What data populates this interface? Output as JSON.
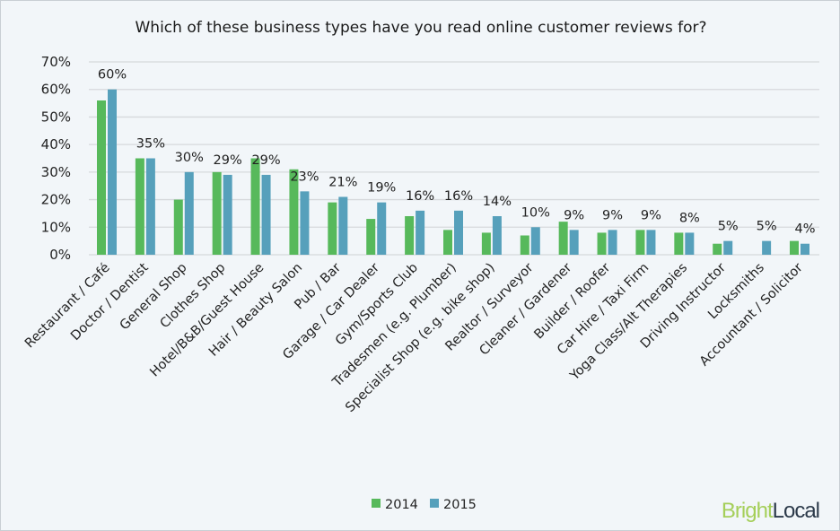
{
  "chart_data": {
    "type": "bar",
    "title": "Which of these business types have you read online customer reviews for?",
    "categories": [
      "Restaurant / Café",
      "Doctor / Dentist",
      "General Shop",
      "Clothes Shop",
      "Hotel/B&B/Guest House",
      "Hair / Beauty Salon",
      "Pub / Bar",
      "Garage / Car Dealer",
      "Gym/Sports Club",
      "Tradesmen (e.g. Plumber)",
      "Specialist Shop (e.g. bike shop)",
      "Realtor / Surveyor",
      "Cleaner / Gardener",
      "Builder / Roofer",
      "Car Hire / Taxi Firm",
      "Yoga Class/Alt Therapies",
      "Driving Instructor",
      "Locksmiths",
      "Accountant / Solicitor"
    ],
    "series": [
      {
        "name": "2014",
        "color": "#57b95b",
        "values": [
          56,
          35,
          20,
          30,
          35,
          31,
          19,
          13,
          14,
          9,
          8,
          7,
          12,
          8,
          9,
          8,
          4,
          null,
          5
        ]
      },
      {
        "name": "2015",
        "color": "#56a0bb",
        "values": [
          60,
          35,
          30,
          29,
          29,
          23,
          21,
          19,
          16,
          16,
          14,
          10,
          9,
          9,
          9,
          8,
          5,
          5,
          4
        ]
      }
    ],
    "data_labels": [
      "60%",
      "35%",
      "30%",
      "29%",
      "29%",
      "23%",
      "21%",
      "19%",
      "16%",
      "16%",
      "14%",
      "10%",
      "9%",
      "9%",
      "9%",
      "8%",
      "5%",
      "5%",
      "4%"
    ],
    "yticks": [
      "0%",
      "10%",
      "20%",
      "30%",
      "40%",
      "50%",
      "60%",
      "70%"
    ],
    "ylim": [
      0,
      70
    ],
    "grid": true,
    "legend": "bottom"
  },
  "logo": {
    "part1": "Bright",
    "part2": "Local",
    "color1": "#a5cf5a",
    "color2": "#2c3a4a"
  }
}
